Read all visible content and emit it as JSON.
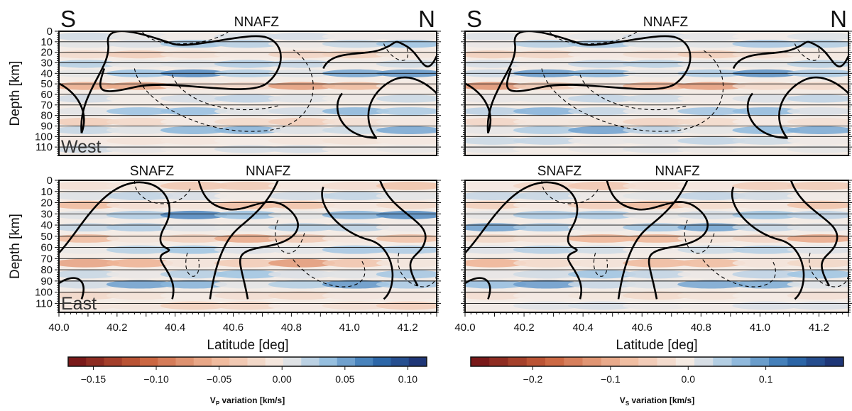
{
  "chart_data": [
    {
      "type": "heatmap",
      "panel": "Vp West",
      "end_labels": {
        "left": "S",
        "right": "N"
      },
      "fault_labels": [
        {
          "text": "NNAFZ",
          "lat": 40.68
        }
      ],
      "region_label": "West",
      "ylabel": "Depth [km]",
      "yticks": [
        0,
        10,
        20,
        30,
        40,
        50,
        60,
        70,
        80,
        90,
        100,
        110
      ],
      "ylim": [
        0,
        118
      ],
      "xlim": [
        40.0,
        41.3
      ],
      "grid": true,
      "bands": [
        {
          "depth": 5,
          "value": 0.02
        },
        {
          "depth": 12,
          "value": 0.05
        },
        {
          "depth": 22,
          "value": -0.03
        },
        {
          "depth": 31,
          "value": 0.04
        },
        {
          "depth": 40,
          "value": 0.09
        },
        {
          "depth": 52,
          "value": -0.07
        },
        {
          "depth": 64,
          "value": 0.03
        },
        {
          "depth": 76,
          "value": 0.06
        },
        {
          "depth": 86,
          "value": -0.03
        },
        {
          "depth": 94,
          "value": 0.07
        },
        {
          "depth": 104,
          "value": -0.01
        },
        {
          "depth": 112,
          "value": 0.02
        }
      ]
    },
    {
      "type": "heatmap",
      "panel": "Vs West",
      "end_labels": {
        "left": "S",
        "right": "N"
      },
      "fault_labels": [
        {
          "text": "NNAFZ",
          "lat": 40.68
        }
      ],
      "xlim": [
        40.0,
        41.3
      ],
      "ylim": [
        0,
        118
      ],
      "grid": true,
      "bands": [
        {
          "depth": 5,
          "value": 0.03
        },
        {
          "depth": 12,
          "value": 0.08
        },
        {
          "depth": 22,
          "value": -0.05
        },
        {
          "depth": 31,
          "value": 0.06
        },
        {
          "depth": 40,
          "value": 0.14
        },
        {
          "depth": 52,
          "value": -0.12
        },
        {
          "depth": 64,
          "value": 0.05
        },
        {
          "depth": 76,
          "value": 0.1
        },
        {
          "depth": 86,
          "value": -0.04
        },
        {
          "depth": 94,
          "value": 0.12
        },
        {
          "depth": 104,
          "value": 0.05
        },
        {
          "depth": 112,
          "value": 0.02
        }
      ]
    },
    {
      "type": "heatmap",
      "panel": "Vp East",
      "fault_labels": [
        {
          "text": "SNAFZ",
          "lat": 40.32
        },
        {
          "text": "NNAFZ",
          "lat": 40.72
        }
      ],
      "region_label": "East",
      "ylabel": "Depth [km]",
      "yticks": [
        0,
        10,
        20,
        30,
        40,
        50,
        60,
        70,
        80,
        90,
        100,
        110
      ],
      "xticks": [
        40.0,
        40.2,
        40.4,
        40.6,
        40.8,
        41.0,
        41.2
      ],
      "xlabel": "Latitude [deg]",
      "xlim": [
        40.0,
        41.3
      ],
      "ylim": [
        0,
        118
      ],
      "grid": true,
      "bands": [
        {
          "depth": 5,
          "value": -0.04
        },
        {
          "depth": 14,
          "value": 0.03
        },
        {
          "depth": 22,
          "value": -0.05
        },
        {
          "depth": 31,
          "value": 0.09
        },
        {
          "depth": 42,
          "value": 0.04
        },
        {
          "depth": 52,
          "value": -0.06
        },
        {
          "depth": 62,
          "value": 0.05
        },
        {
          "depth": 74,
          "value": -0.07
        },
        {
          "depth": 84,
          "value": 0.05
        },
        {
          "depth": 93,
          "value": 0.08
        },
        {
          "depth": 103,
          "value": -0.02
        },
        {
          "depth": 112,
          "value": -0.03
        }
      ]
    },
    {
      "type": "heatmap",
      "panel": "Vs East",
      "fault_labels": [
        {
          "text": "SNAFZ",
          "lat": 40.32
        },
        {
          "text": "NNAFZ",
          "lat": 40.72
        }
      ],
      "xticks": [
        40.0,
        40.2,
        40.4,
        40.6,
        40.8,
        41.0,
        41.2
      ],
      "xlabel": "Latitude [deg]",
      "xlim": [
        40.0,
        41.3
      ],
      "ylim": [
        0,
        118
      ],
      "grid": true,
      "bands": [
        {
          "depth": 5,
          "value": -0.06
        },
        {
          "depth": 14,
          "value": 0.05
        },
        {
          "depth": 22,
          "value": -0.08
        },
        {
          "depth": 31,
          "value": 0.08
        },
        {
          "depth": 42,
          "value": 0.12
        },
        {
          "depth": 52,
          "value": -0.1
        },
        {
          "depth": 62,
          "value": 0.06
        },
        {
          "depth": 74,
          "value": -0.09
        },
        {
          "depth": 84,
          "value": 0.08
        },
        {
          "depth": 93,
          "value": 0.13
        },
        {
          "depth": 103,
          "value": -0.03
        },
        {
          "depth": 112,
          "value": 0.03
        }
      ]
    }
  ],
  "colorbars": [
    {
      "label_main": "V",
      "label_sub": "P",
      "label_rest": " variation [km/s]",
      "min": -0.17,
      "max": 0.115,
      "ticks": [
        -0.15,
        -0.1,
        -0.05,
        0.0,
        0.05,
        0.1
      ],
      "tick_labels": [
        "−0.15",
        "−0.10",
        "−0.05",
        "0.00",
        "0.05",
        "0.10"
      ]
    },
    {
      "label_main": "V",
      "label_sub": "S",
      "label_rest": " variation [km/s]",
      "min": -0.28,
      "max": 0.2,
      "ticks": [
        -0.2,
        -0.1,
        0.0,
        0.1
      ],
      "tick_labels": [
        "−0.2",
        "−0.1",
        "0.0",
        "0.1"
      ]
    }
  ],
  "colors": {
    "blue_dark": "#1b2a6b",
    "blue": "#2f6fb0",
    "blue_light": "#9cc3e2",
    "neutral": "#f4ece6",
    "red_light": "#f0b99b",
    "red": "#c8603a",
    "red_dark": "#6e0f14"
  }
}
